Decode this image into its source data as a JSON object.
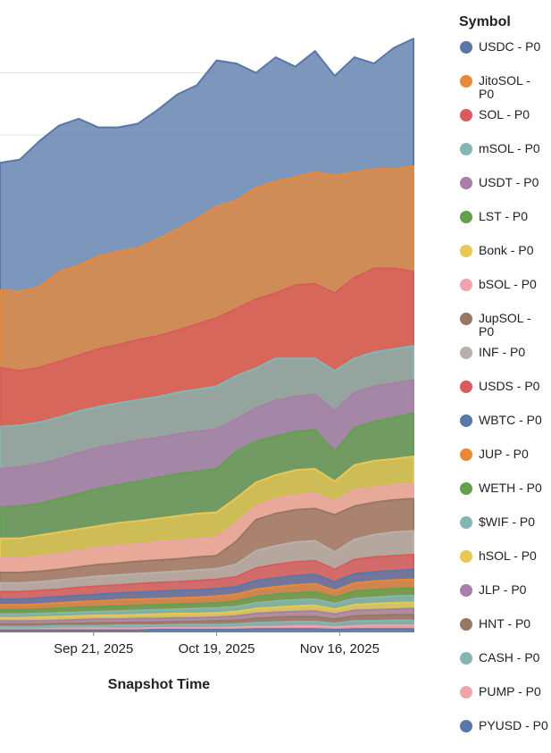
{
  "chart_data": {
    "type": "area",
    "stacked": true,
    "title": "",
    "xlabel": "Snapshot Time",
    "ylabel": "",
    "x_ticks": [
      "Sep 21, 2025",
      "Oct 19, 2025",
      "Nov 16, 2025"
    ],
    "x_range": [
      0,
      84
    ],
    "y_range": [
      0,
      1000
    ],
    "gridlines": true,
    "legend": {
      "title": "Symbol",
      "placement": "right",
      "entries": [
        {
          "label": "USDC - P0",
          "color": "#5878A8"
        },
        {
          "label": "JitoSOL - P0",
          "color": "#E8893A"
        },
        {
          "label": "SOL - P0",
          "color": "#D95C5C"
        },
        {
          "label": "mSOL - P0",
          "color": "#84B6B2"
        },
        {
          "label": "USDT - P0",
          "color": "#A87FA8"
        },
        {
          "label": "LST - P0",
          "color": "#63A04F"
        },
        {
          "label": "Bonk - P0",
          "color": "#E8C755"
        },
        {
          "label": "bSOL - P0",
          "color": "#EFA3AA"
        },
        {
          "label": "JupSOL - P0",
          "color": "#987865"
        },
        {
          "label": "INF - P0",
          "color": "#B8B0AC"
        },
        {
          "label": "USDS - P0",
          "color": "#D95C5C"
        },
        {
          "label": "WBTC - P0",
          "color": "#5878A8"
        },
        {
          "label": "JUP - P0",
          "color": "#E8893A"
        },
        {
          "label": "WETH - P0",
          "color": "#63A04F"
        },
        {
          "label": "$WIF - P0",
          "color": "#84B6B2"
        },
        {
          "label": "hSOL - P0",
          "color": "#E8C755"
        },
        {
          "label": "JLP - P0",
          "color": "#A87FA8"
        },
        {
          "label": "HNT - P0",
          "color": "#987865"
        },
        {
          "label": "CASH - P0",
          "color": "#84B6B2"
        },
        {
          "label": "PUMP - P0",
          "color": "#EFA3AA"
        },
        {
          "label": "PYUSD - P0",
          "color": "#5878A8"
        }
      ]
    },
    "x": [
      0,
      4,
      8,
      12,
      16,
      20,
      24,
      28,
      32,
      36,
      40,
      44,
      48,
      52,
      56,
      60,
      64,
      68,
      72,
      76,
      80,
      84
    ],
    "series_cumulative": [
      {
        "name": "USDC - P0",
        "color": "#5878A8",
        "top": [
          755,
          760,
          790,
          815,
          826,
          812,
          812,
          818,
          840,
          865,
          880,
          920,
          915,
          900,
          925,
          910,
          935,
          895,
          925,
          915,
          940,
          955
        ]
      },
      {
        "name": "JitoSOL - P0",
        "color": "#E8893A",
        "top": [
          550,
          548,
          555,
          580,
          590,
          605,
          612,
          618,
          632,
          648,
          665,
          685,
          694,
          715,
          725,
          732,
          740,
          735,
          740,
          745,
          745,
          750
        ]
      },
      {
        "name": "SOL - P0",
        "color": "#D95C5C",
        "top": [
          425,
          420,
          425,
          435,
          445,
          455,
          462,
          470,
          476,
          485,
          495,
          505,
          520,
          535,
          545,
          558,
          560,
          545,
          570,
          585,
          585,
          580
        ]
      },
      {
        "name": "mSOL - P0",
        "color": "#84B6B2",
        "top": [
          330,
          332,
          337,
          345,
          355,
          362,
          368,
          373,
          378,
          385,
          390,
          395,
          412,
          424,
          440,
          440,
          440,
          420,
          440,
          450,
          455,
          460
        ]
      },
      {
        "name": "USDT - P0",
        "color": "#A87FA8",
        "top": [
          262,
          265,
          270,
          278,
          288,
          296,
          302,
          308,
          312,
          318,
          322,
          326,
          342,
          360,
          372,
          378,
          382,
          355,
          385,
          395,
          400,
          405
        ]
      },
      {
        "name": "LST - P0",
        "color": "#63A04F",
        "top": [
          200,
          202,
          206,
          214,
          222,
          230,
          236,
          242,
          248,
          254,
          258,
          262,
          290,
          306,
          315,
          322,
          325,
          290,
          328,
          338,
          345,
          352
        ]
      },
      {
        "name": "Bonk - P0",
        "color": "#E8C755",
        "top": [
          150,
          150,
          155,
          160,
          165,
          170,
          175,
          178,
          182,
          186,
          190,
          192,
          215,
          240,
          252,
          260,
          262,
          242,
          268,
          275,
          278,
          282
        ]
      },
      {
        "name": "bSOL - P0",
        "color": "#EFA3AA",
        "top": [
          118,
          118,
          121,
          125,
          130,
          135,
          138,
          141,
          144,
          146,
          149,
          152,
          175,
          202,
          214,
          220,
          222,
          210,
          228,
          232,
          236,
          238
        ]
      },
      {
        "name": "JupSOL - P0",
        "color": "#987865",
        "top": [
          95,
          95,
          97,
          100,
          104,
          108,
          110,
          113,
          115,
          117,
          120,
          122,
          145,
          180,
          190,
          196,
          198,
          188,
          202,
          208,
          212,
          214
        ]
      },
      {
        "name": "INF - P0",
        "color": "#B8B0AC",
        "top": [
          78,
          78,
          80,
          83,
          86,
          89,
          91,
          93,
          95,
          97,
          99,
          101,
          108,
          130,
          138,
          144,
          146,
          128,
          148,
          156,
          160,
          162
        ]
      },
      {
        "name": "USDS - P0",
        "color": "#D95C5C",
        "top": [
          64,
          64,
          66,
          68,
          71,
          73,
          75,
          77,
          79,
          80,
          82,
          84,
          88,
          102,
          108,
          112,
          114,
          100,
          116,
          120,
          122,
          124
        ]
      },
      {
        "name": "WBTC - P0",
        "color": "#5878A8",
        "top": [
          52,
          52,
          54,
          56,
          58,
          60,
          62,
          63,
          65,
          66,
          67,
          69,
          72,
          82,
          86,
          90,
          92,
          80,
          93,
          96,
          98,
          100
        ]
      },
      {
        "name": "JUP - P0",
        "color": "#E8893A",
        "top": [
          43,
          43,
          44,
          46,
          48,
          49,
          51,
          52,
          53,
          54,
          55,
          57,
          60,
          68,
          72,
          75,
          77,
          66,
          78,
          81,
          83,
          84
        ]
      },
      {
        "name": "WETH - P0",
        "color": "#63A04F",
        "top": [
          35,
          35,
          36,
          37,
          39,
          40,
          41,
          42,
          43,
          44,
          45,
          46,
          49,
          56,
          60,
          62,
          64,
          55,
          65,
          67,
          69,
          70
        ]
      },
      {
        "name": "$WIF - P0",
        "color": "#84B6B2",
        "top": [
          28,
          28,
          29,
          30,
          31,
          32,
          33,
          34,
          35,
          36,
          37,
          38,
          40,
          46,
          49,
          51,
          52,
          45,
          53,
          55,
          57,
          58
        ]
      },
      {
        "name": "hSOL - P0",
        "color": "#E8C755",
        "top": [
          22,
          22,
          23,
          24,
          25,
          26,
          26,
          27,
          28,
          29,
          29,
          30,
          32,
          37,
          39,
          41,
          42,
          36,
          43,
          45,
          46,
          47
        ]
      },
      {
        "name": "JLP - P0",
        "color": "#A87FA8",
        "top": [
          17,
          17,
          17,
          18,
          19,
          20,
          20,
          21,
          21,
          22,
          22,
          23,
          25,
          29,
          31,
          32,
          33,
          28,
          34,
          35,
          36,
          37
        ]
      },
      {
        "name": "HNT - P0",
        "color": "#987865",
        "top": [
          12,
          12,
          12,
          13,
          13,
          14,
          14,
          15,
          15,
          16,
          16,
          17,
          18,
          21,
          23,
          24,
          24,
          20,
          25,
          26,
          27,
          27
        ]
      },
      {
        "name": "CASH - P0",
        "color": "#84B6B2",
        "top": [
          8,
          8,
          8,
          9,
          9,
          9,
          10,
          10,
          10,
          11,
          11,
          11,
          12,
          14,
          15,
          16,
          16,
          13,
          17,
          17,
          18,
          18
        ]
      },
      {
        "name": "PUMP - P0",
        "color": "#EFA3AA",
        "top": [
          4,
          4,
          4,
          5,
          5,
          5,
          5,
          5,
          6,
          6,
          6,
          6,
          7,
          8,
          8,
          9,
          9,
          7,
          9,
          10,
          10,
          10
        ]
      },
      {
        "name": "PYUSD - P0",
        "color": "#5878A8",
        "top": [
          2,
          2,
          2,
          2,
          2,
          2,
          2,
          2,
          3,
          3,
          3,
          3,
          3,
          4,
          4,
          4,
          4,
          3,
          4,
          4,
          4,
          4
        ]
      }
    ]
  }
}
